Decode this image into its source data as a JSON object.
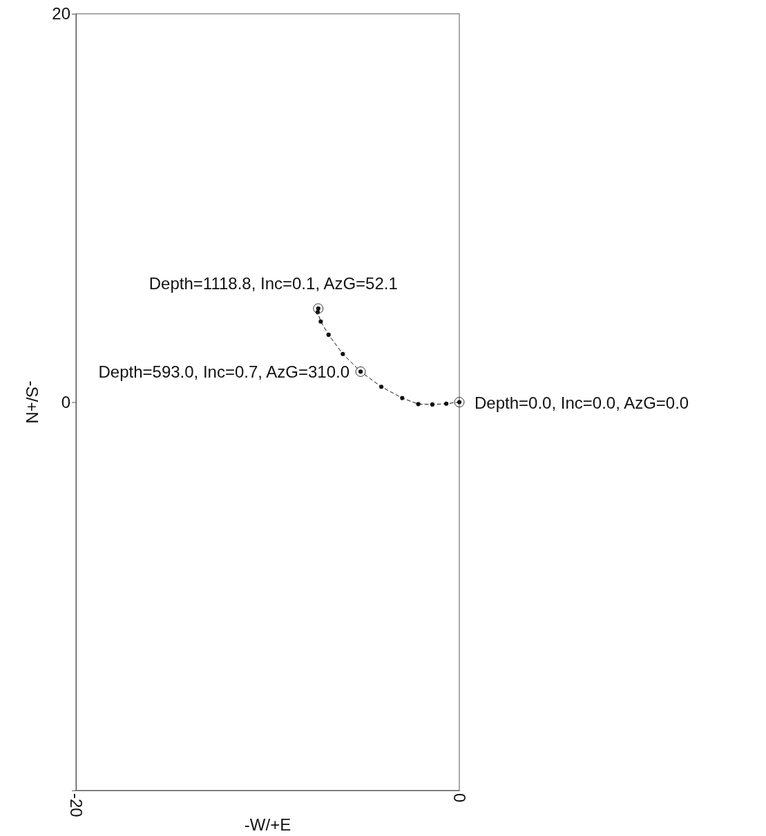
{
  "chart_data": {
    "type": "line",
    "xlabel": "-W/+E",
    "ylabel": "-S/+N",
    "xlim": [
      -20,
      0
    ],
    "ylim": [
      -20,
      20
    ],
    "xticks": [
      -20,
      0
    ],
    "yticks": [
      20,
      0
    ],
    "grid": false,
    "marker": "circle",
    "line_style": "dashed",
    "series": [
      {
        "color": "#111111",
        "x": [
          0,
          -0.68,
          -1.41,
          -2.14,
          -2.98,
          -4.07,
          -5.15,
          -6.08,
          -6.82,
          -7.23,
          -7.39,
          -7.36
        ],
        "values": [
          0,
          -0.08,
          -0.12,
          -0.1,
          0.21,
          0.79,
          1.57,
          2.48,
          3.47,
          4.15,
          4.63,
          4.82
        ]
      }
    ],
    "annotations": [
      {
        "text": "Depth=0.0, Inc=0.0, AzG=0.0",
        "x": 0,
        "y": 0
      },
      {
        "text": "Depth=593.0, Inc=0.7, AzG=310.0",
        "x": -5.15,
        "y": 1.57
      },
      {
        "text": "Depth=1118.8, Inc=0.1, AzG=52.1",
        "x": -7.36,
        "y": 4.82
      }
    ]
  }
}
